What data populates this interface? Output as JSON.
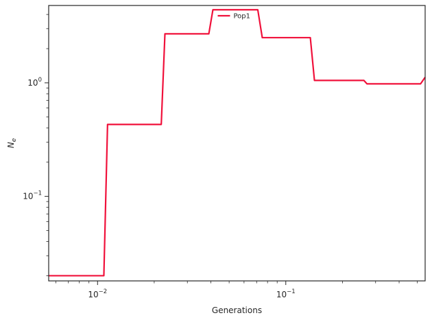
{
  "chart_data": {
    "type": "line",
    "title": "",
    "xlabel": "Generations",
    "ylabel_main": "N",
    "ylabel_sub": "e",
    "xscale": "log",
    "yscale": "log",
    "xlim": [
      0.0055,
      0.55
    ],
    "ylim": [
      0.018,
      4.8
    ],
    "x_ticks": [
      {
        "value": 0.01,
        "base": "10",
        "exp": "−2"
      },
      {
        "value": 0.1,
        "base": "10",
        "exp": "−1"
      }
    ],
    "y_ticks": [
      {
        "value": 0.1,
        "base": "10",
        "exp": "−1"
      },
      {
        "value": 1,
        "base": "10",
        "exp": "0"
      }
    ],
    "grid": false,
    "legend_position": "top-center",
    "series": [
      {
        "name": "Pop1",
        "color": "#f0103a",
        "x": [
          0.0055,
          0.0108,
          0.0113,
          0.0218,
          0.0228,
          0.039,
          0.041,
          0.071,
          0.075,
          0.135,
          0.142,
          0.26,
          0.27,
          0.52,
          0.55
        ],
        "y": [
          0.02,
          0.02,
          0.43,
          0.43,
          2.7,
          2.7,
          4.4,
          4.4,
          2.5,
          2.5,
          1.05,
          1.05,
          0.98,
          0.98,
          1.12
        ]
      }
    ]
  }
}
